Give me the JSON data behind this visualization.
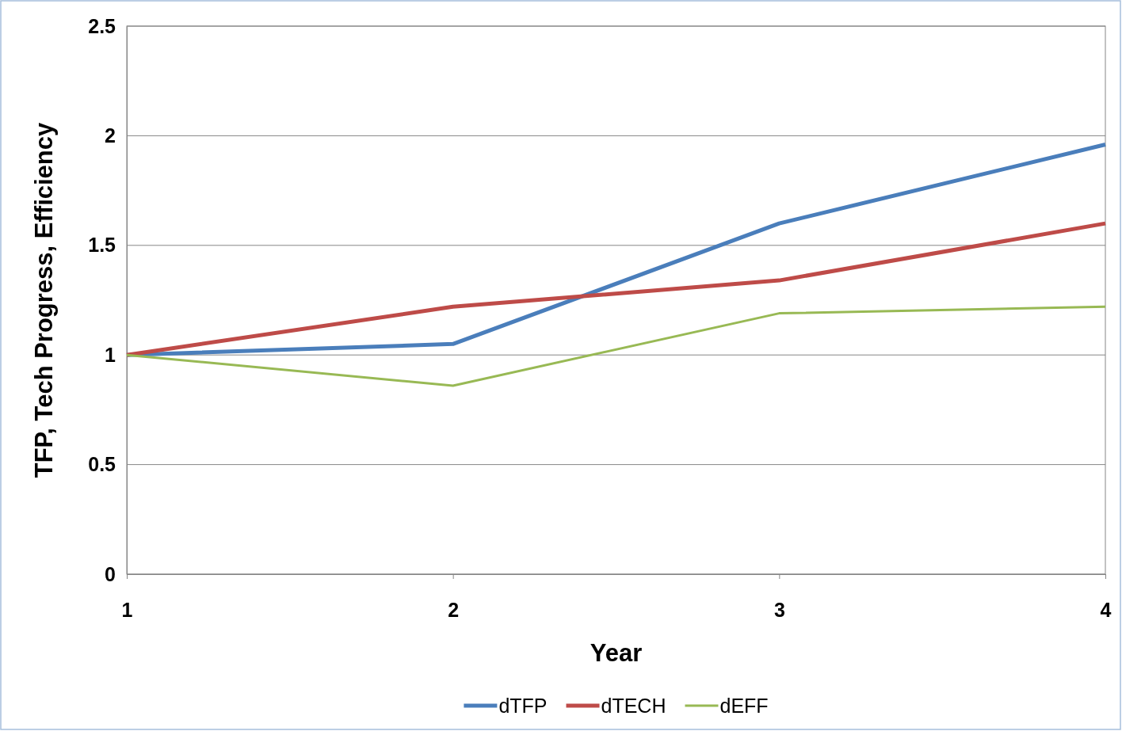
{
  "chart_data": {
    "type": "line",
    "xlabel": "Year",
    "ylabel": "TFP, Tech Progress, Efficiency",
    "x": [
      1,
      2,
      3,
      4
    ],
    "series": [
      {
        "name": "dTFP",
        "color": "#4a7ebb",
        "values": [
          1,
          1.05,
          1.6,
          1.96
        ]
      },
      {
        "name": "dTECH",
        "color": "#be4b48",
        "values": [
          1,
          1.22,
          1.34,
          1.6
        ]
      },
      {
        "name": "dEFF",
        "color": "#98b954",
        "values": [
          1,
          0.86,
          1.19,
          1.22
        ]
      }
    ],
    "xlim": [
      1,
      4
    ],
    "xticks": [
      1,
      2,
      3,
      4
    ],
    "ylim": [
      0,
      2.5
    ],
    "yticks": [
      0,
      0.5,
      1,
      1.5,
      2,
      2.5
    ],
    "grid": "y",
    "legend": "bottom",
    "marker": "none",
    "line_style": "solid"
  }
}
